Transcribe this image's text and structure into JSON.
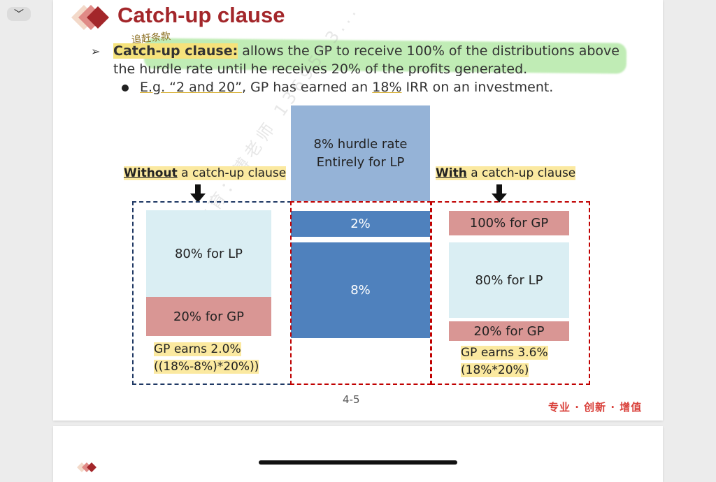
{
  "viewer": {
    "back_glyph": "﹀",
    "more_glyph": "•••"
  },
  "slide": {
    "title": "Catch-up clause",
    "handwriting": "追赶条款",
    "bullet1": {
      "term": "Catch-up clause:",
      "text": " allows the GP to receive 100% of the distributions above",
      "line2": "the hurdle rate until he receives 20% of the profits generated."
    },
    "bullet2": {
      "eg": "E.g. “2 and 20”",
      "mid": ", GP has earned an ",
      "irr": "18%",
      "tail": " IRR on an investment."
    },
    "without_label": {
      "bold": "Without",
      "rest": " a catch-up clause"
    },
    "with_label": {
      "bold": "With",
      "rest": " a catch-up clause"
    },
    "middle": {
      "hurdle_line1": "8% hurdle rate",
      "hurdle_line2": "Entirely for LP",
      "two": "2%",
      "eight": "8%"
    },
    "left": {
      "lp": "80% for LP",
      "gp": "20% for GP",
      "earn1": "GP earns 2.0%",
      "earn2": "((18%-8%)*20%))"
    },
    "right": {
      "gp_top": "100% for GP",
      "lp": "80% for LP",
      "gp_bot": "20% for GP",
      "earn1": "GP earns 3.6%",
      "earn2": "(18%*20%)"
    },
    "page_number": "4-5",
    "tagline": "专业 · 创新 · 增值",
    "watermark": "金程教育：傅老师 1369513..."
  },
  "colors": {
    "title": "#a3262a",
    "hurdle": "#95b3d7",
    "blue": "#4f81bd",
    "light_blue": "#daeef3",
    "rose": "#d99694",
    "highlight": "#fbe9a0"
  }
}
